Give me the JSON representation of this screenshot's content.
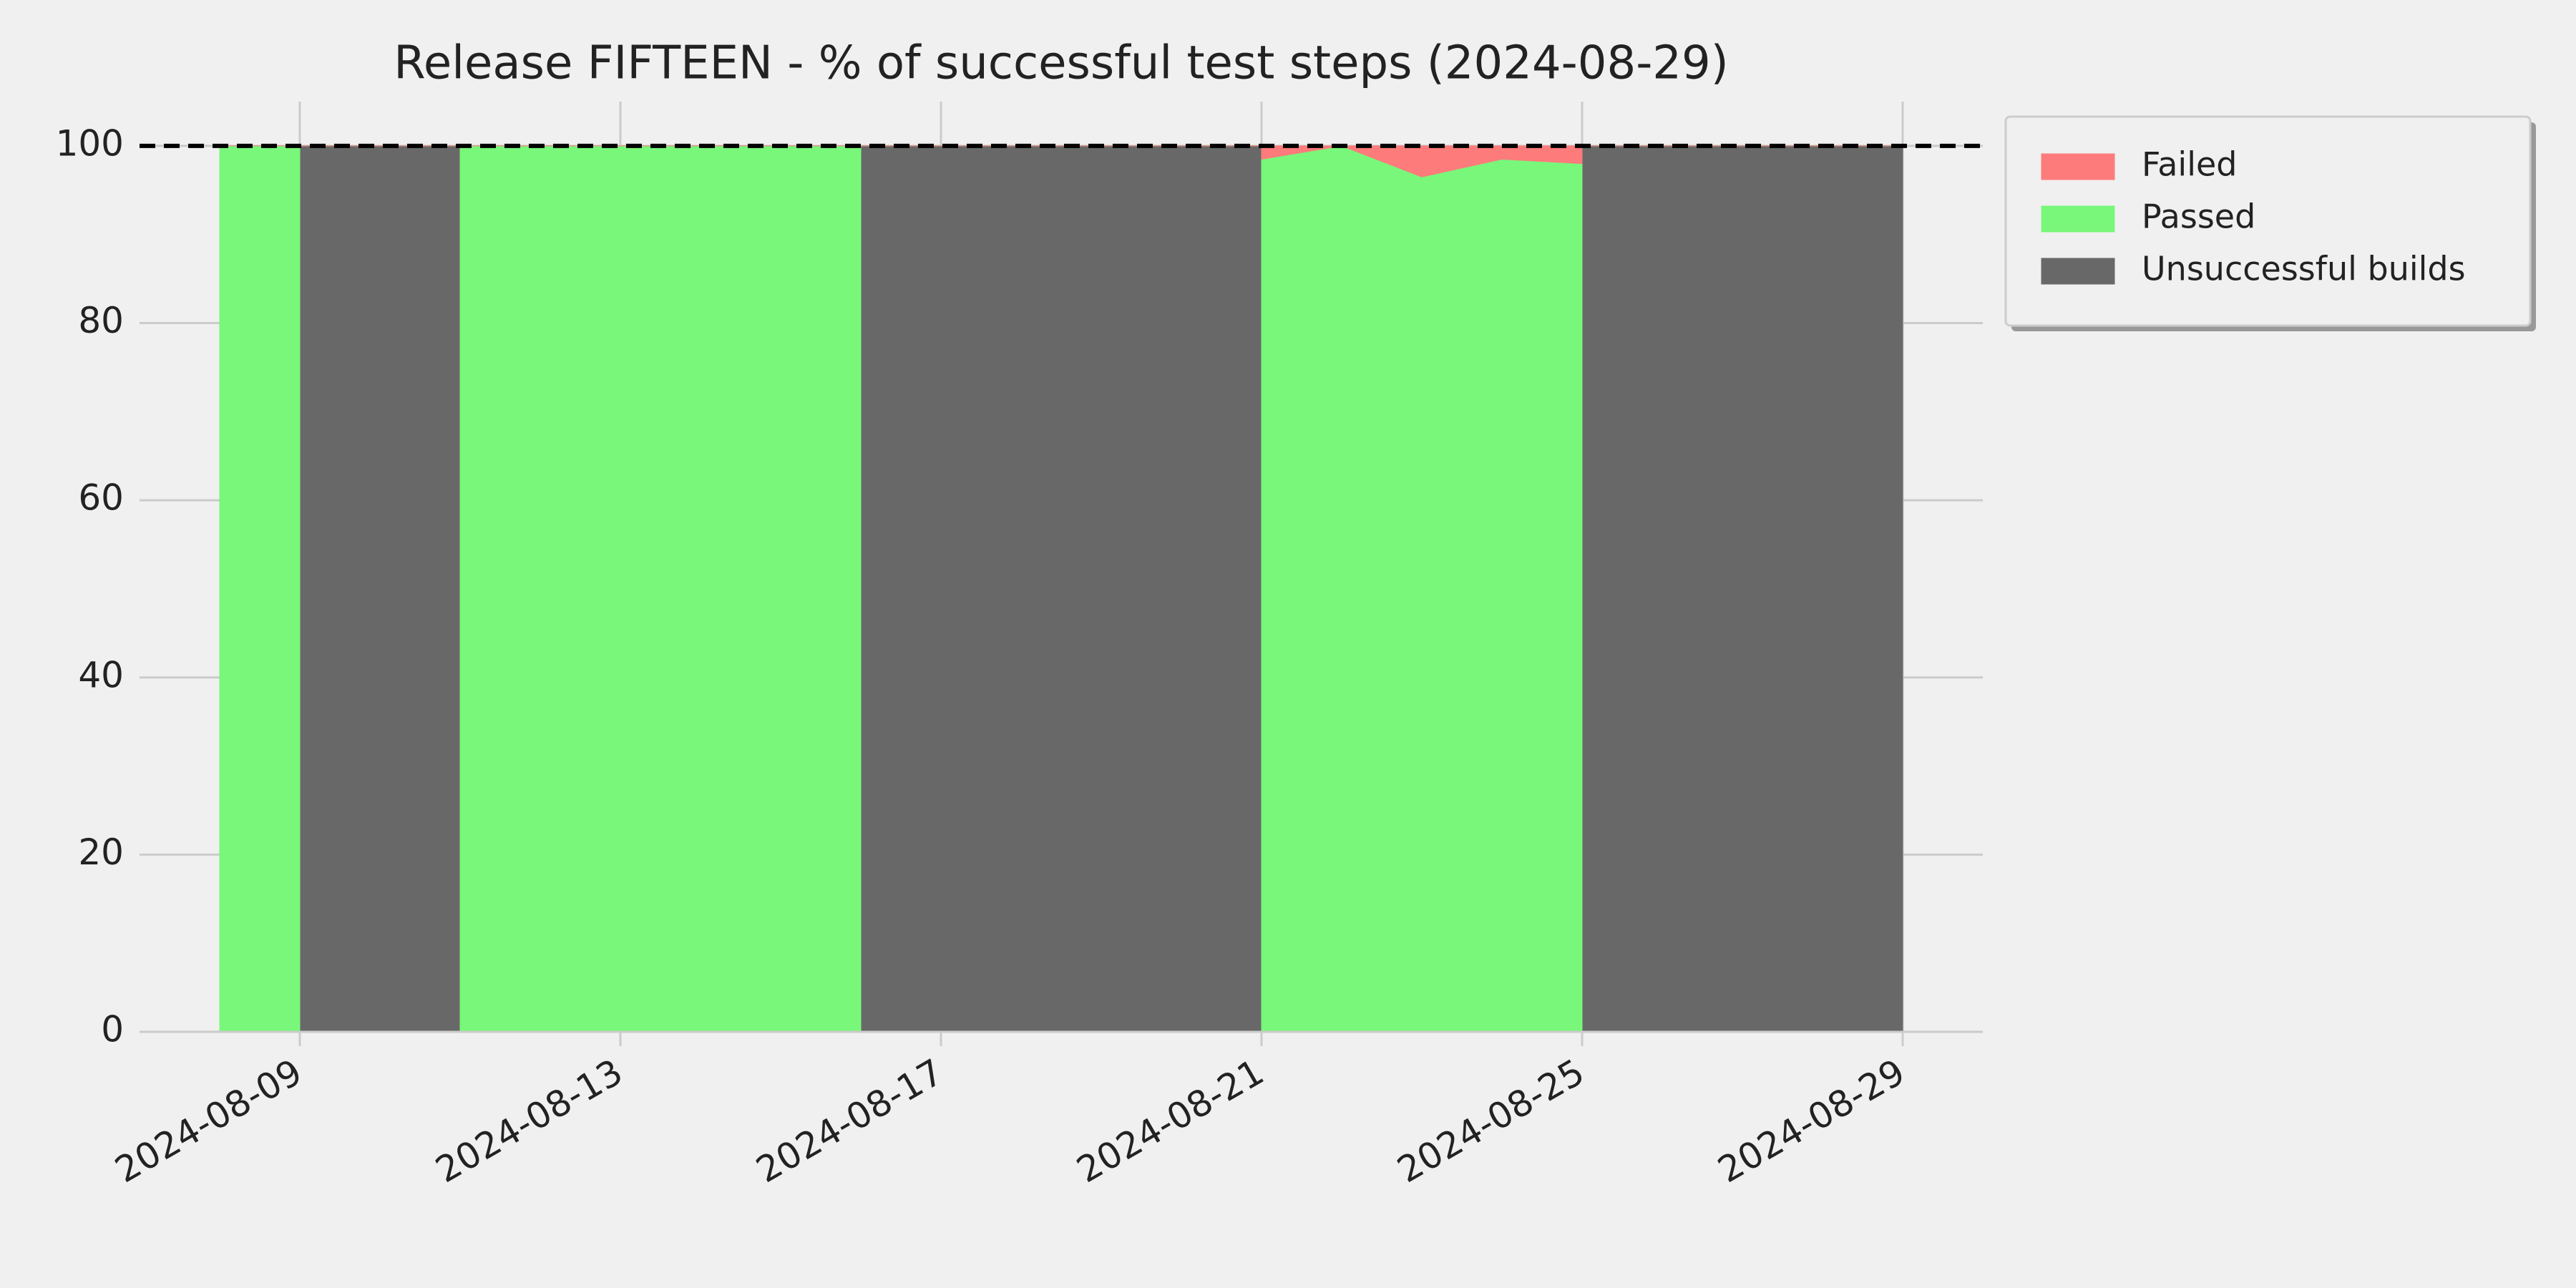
{
  "chart_data": {
    "type": "stacked_area",
    "title": "Release FIFTEEN - % of successful test steps (2024-08-29)",
    "x": [
      "2024-08-08",
      "2024-08-09",
      "2024-08-09",
      "2024-08-11",
      "2024-08-11",
      "2024-08-16",
      "2024-08-16",
      "2024-08-21",
      "2024-08-21",
      "2024-08-22",
      "2024-08-23",
      "2024-08-24",
      "2024-08-25",
      "2024-08-25",
      "2024-08-29"
    ],
    "series": [
      {
        "name": "Failed",
        "color": "#fd7b7b",
        "values": [
          0,
          0,
          0,
          0,
          0,
          0,
          0,
          0,
          1.5,
          0,
          3.5,
          1.5,
          2,
          0,
          0
        ]
      },
      {
        "name": "Passed",
        "color": "#78f77a",
        "values": [
          100,
          100,
          0,
          0,
          100,
          100,
          0,
          0,
          98.5,
          100,
          96.5,
          98.5,
          98,
          0,
          0
        ]
      },
      {
        "name": "Unsuccessful builds",
        "color": "#686868",
        "values": [
          0,
          0,
          100,
          100,
          0,
          0,
          100,
          100,
          0,
          0,
          0,
          0,
          0,
          100,
          100
        ]
      }
    ],
    "xlim": [
      "2024-08-07",
      "2024-08-30"
    ],
    "xticks": [
      "2024-08-09",
      "2024-08-13",
      "2024-08-17",
      "2024-08-21",
      "2024-08-25",
      "2024-08-29"
    ],
    "ylim": [
      0,
      105
    ],
    "yticks": [
      0,
      20,
      40,
      60,
      80,
      100
    ],
    "reference_line": 100,
    "grid": true,
    "legend": "upper right outside"
  }
}
